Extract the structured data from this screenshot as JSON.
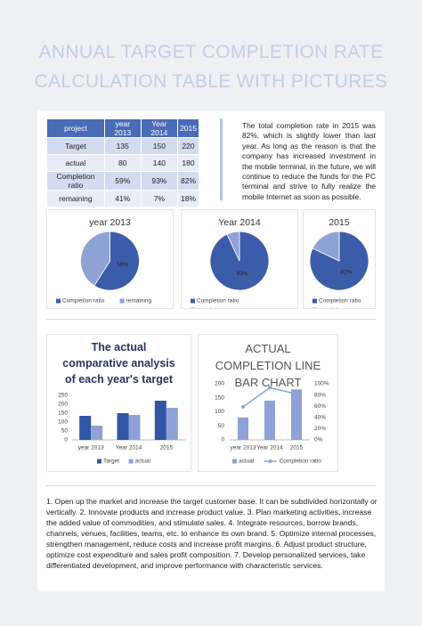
{
  "title": "ANNUAL TARGET COMPLETION RATE CALCULATION TABLE WITH PICTURES",
  "table": {
    "header": [
      "project",
      "year 2013",
      "Year 2014",
      "2015"
    ],
    "rows": [
      [
        "Target",
        "135",
        "150",
        "220"
      ],
      [
        "actual",
        "80",
        "140",
        "180"
      ],
      [
        "Completion ratio",
        "59%",
        "93%",
        "82%"
      ],
      [
        "remaining",
        "41%",
        "7%",
        "18%"
      ]
    ]
  },
  "summary": "The total completion rate in 2015 was 82%, which is slightly lower than last year. As long as the reason is that the company has increased investment in the mobile terminal, in the future, we will continue to reduce the funds for the PC terminal and strive to fully realize the mobile Internet as soon as possible.",
  "chart_data": [
    {
      "type": "pie",
      "title": "year 2013",
      "categories": [
        "Completion ratio",
        "remaining"
      ],
      "values": [
        59,
        41
      ],
      "value_labels": [
        "59%",
        null
      ],
      "colors": [
        "#3b5ca9",
        "#8fa2d6"
      ]
    },
    {
      "type": "pie",
      "title": "Year 2014",
      "categories": [
        "Completion ratio",
        "remaining"
      ],
      "values": [
        93,
        7
      ],
      "value_labels": [
        "93%",
        null
      ],
      "colors": [
        "#3b5ca9",
        "#8fa2d6"
      ]
    },
    {
      "type": "pie",
      "title": "2015",
      "categories": [
        "Completion ratio",
        "remaining"
      ],
      "values": [
        82,
        18
      ],
      "value_labels": [
        "82%",
        null
      ],
      "colors": [
        "#3b5ca9",
        "#8fa2d6"
      ]
    },
    {
      "type": "bar",
      "title": "The actual comparative analysis of each year's target",
      "categories": [
        "year 2013",
        "Year 2014",
        "2015"
      ],
      "series": [
        {
          "name": "Target",
          "color": "#3156a6",
          "values": [
            135,
            150,
            220
          ]
        },
        {
          "name": "actual",
          "color": "#8ea2d8",
          "values": [
            80,
            140,
            180
          ]
        }
      ],
      "ylim": [
        0,
        250
      ],
      "yticks": [
        0,
        50,
        100,
        150,
        200,
        250
      ],
      "grid": false
    },
    {
      "type": "combo",
      "title": "ACTUAL COMPLETION LINE BAR CHART",
      "categories": [
        "year 2013",
        "Year 2014",
        "2015"
      ],
      "series": [
        {
          "name": "actual",
          "color": "#8ea2d8",
          "kind": "bar",
          "values": [
            80,
            140,
            180
          ]
        },
        {
          "name": "Completion ratio",
          "color": "#8ea2d8",
          "kind": "line",
          "axis": "y2",
          "values": [
            59,
            93,
            82
          ]
        }
      ],
      "ylim": [
        0,
        200
      ],
      "yticks": [
        0,
        50,
        100,
        150,
        200
      ],
      "y2lim": [
        0,
        100
      ],
      "y2ticks": [
        {
          "value": 0,
          "label": "0%"
        },
        {
          "value": 20,
          "label": "20%"
        },
        {
          "value": 40,
          "label": "40%"
        },
        {
          "value": 60,
          "label": "60%"
        },
        {
          "value": 80,
          "label": "80%"
        },
        {
          "value": 100,
          "label": "100%"
        }
      ],
      "grid": false
    }
  ],
  "notes": "1. Open up the market and increase the target customer base. It can be subdivided horizontally or vertically. 2. Innovate products and increase product value. 3. Plan marketing activities, increase the added value of commodities, and stimulate sales. 4. Integrate resources, borrow brands, channels, venues, facilities, teams, etc. to enhance its own brand. 5. Optimize internal processes, strengthen management, reduce costs and increase profit margins. 6. Adjust product structure, optimize cost expenditure and sales profit composition. 7. Develop personalized services, take differentiated development, and improve performance with characteristic services."
}
